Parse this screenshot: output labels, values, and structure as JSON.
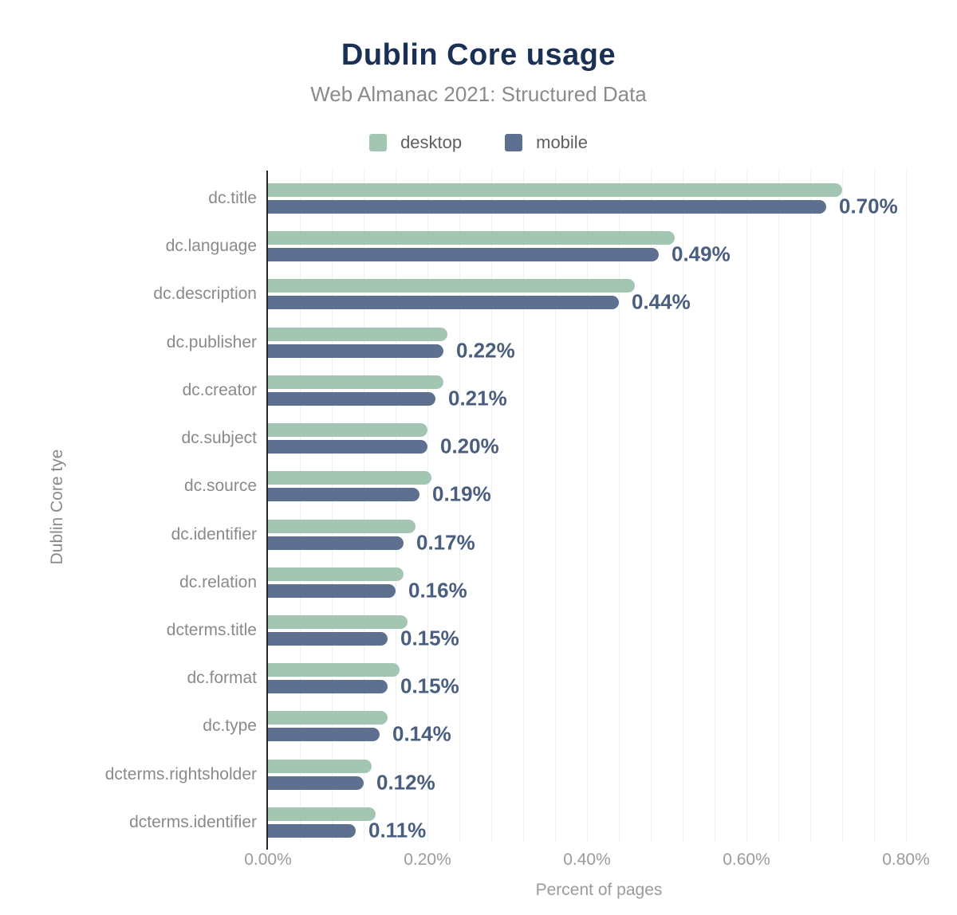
{
  "header": {
    "title": "Dublin Core usage",
    "subtitle": "Web Almanac 2021: Structured Data"
  },
  "colors": {
    "title": "#1b3055",
    "subtitle": "#8b8b8b",
    "desktop_bar": "#a2c6b2",
    "mobile_bar": "#5d7090",
    "value_label": "#4a5e80",
    "category_label": "#8a8a8a",
    "tick_label": "#9b9b9b",
    "axis_line": "#262626",
    "gridline": "#eef1ee"
  },
  "chart_data": {
    "type": "bar",
    "orientation": "horizontal",
    "title": "Dublin Core usage",
    "subtitle": "Web Almanac 2021: Structured Data",
    "xlabel": "Percent of pages",
    "ylabel": "Dublin Core tye",
    "legend_position": "top",
    "grid": "vertical, minor every 0.04%, major every 0.20%",
    "xlim": [
      0,
      0.83
    ],
    "x_ticks": [
      "0.00%",
      "0.20%",
      "0.40%",
      "0.60%",
      "0.80%"
    ],
    "x_tick_values": [
      0.0,
      0.2,
      0.4,
      0.6,
      0.8
    ],
    "categories": [
      "dc.title",
      "dc.language",
      "dc.description",
      "dc.publisher",
      "dc.creator",
      "dc.subject",
      "dc.source",
      "dc.identifier",
      "dc.relation",
      "dcterms.title",
      "dc.format",
      "dc.type",
      "dcterms.rightsholder",
      "dcterms.identifier"
    ],
    "series": [
      {
        "name": "desktop",
        "color": "#a2c6b2",
        "values": [
          0.72,
          0.51,
          0.46,
          0.225,
          0.22,
          0.2,
          0.205,
          0.185,
          0.17,
          0.175,
          0.165,
          0.15,
          0.13,
          0.135
        ]
      },
      {
        "name": "mobile",
        "color": "#5d7090",
        "values": [
          0.7,
          0.49,
          0.44,
          0.22,
          0.21,
          0.2,
          0.19,
          0.17,
          0.16,
          0.15,
          0.15,
          0.14,
          0.12,
          0.11
        ]
      }
    ],
    "value_labels": [
      "0.70%",
      "0.49%",
      "0.44%",
      "0.22%",
      "0.21%",
      "0.20%",
      "0.19%",
      "0.17%",
      "0.16%",
      "0.15%",
      "0.15%",
      "0.14%",
      "0.12%",
      "0.11%"
    ]
  }
}
